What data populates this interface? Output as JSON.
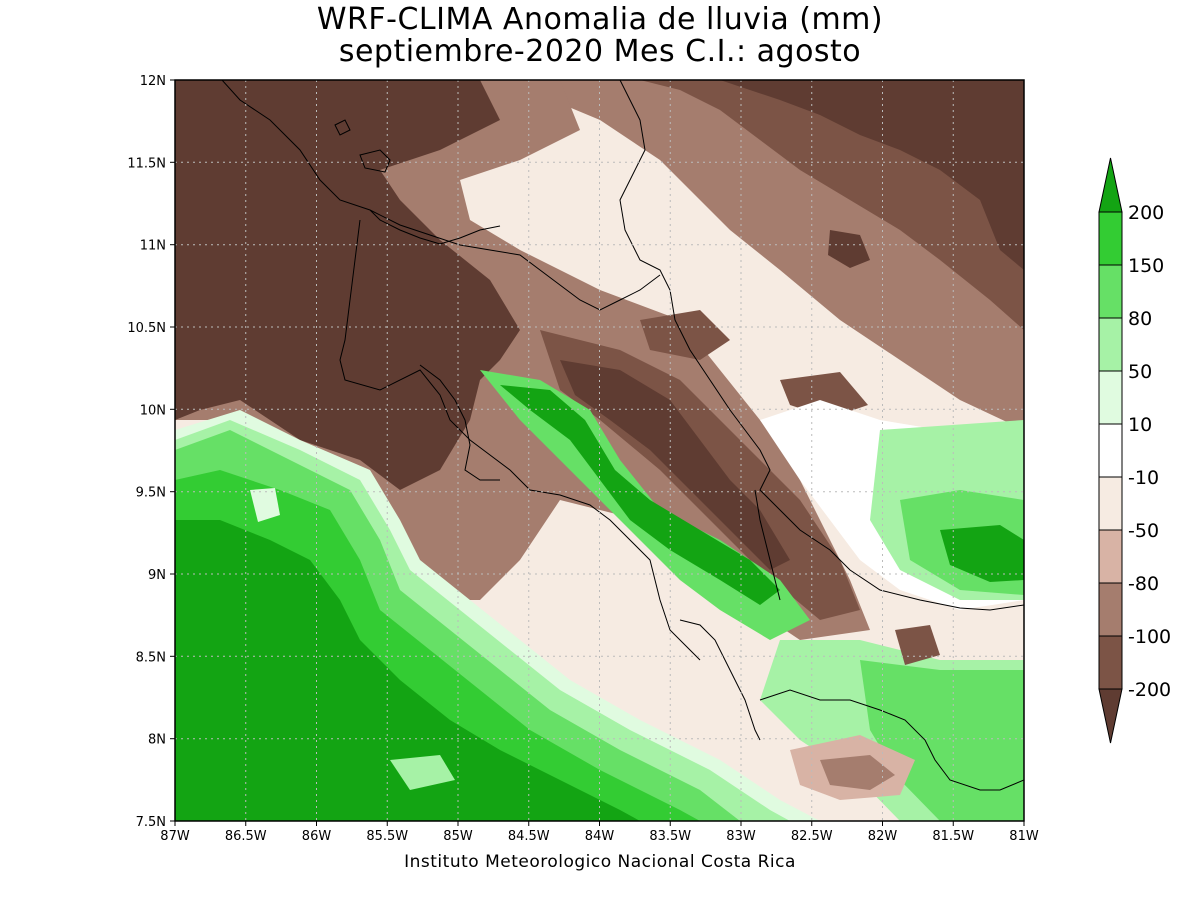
{
  "title": {
    "line1": "WRF-CLIMA Anomalia de lluvia (mm)",
    "line2": "septiembre-2020 Mes C.I.: agosto"
  },
  "credit": "Instituto Meteorologico Nacional Costa Rica",
  "axes": {
    "x_ticks": [
      "87W",
      "86.5W",
      "86W",
      "85.5W",
      "85W",
      "84.5W",
      "84W",
      "83.5W",
      "83W",
      "82.5W",
      "82W",
      "81.5W",
      "81W"
    ],
    "y_ticks": [
      "12N",
      "11.5N",
      "11N",
      "10.5N",
      "10N",
      "9.5N",
      "9N",
      "8.5N",
      "8N",
      "7.5N"
    ],
    "lon_range": [
      -87,
      -81
    ],
    "lat_range": [
      7.5,
      12
    ],
    "grid": "dotted"
  },
  "legend": {
    "labels": [
      "200",
      "150",
      "80",
      "50",
      "10",
      "-10",
      "-50",
      "-80",
      "-100",
      "-200"
    ],
    "colors": [
      "#13a413",
      "#33cc33",
      "#66e066",
      "#a6f2a6",
      "#e0fbe0",
      "#ffffff",
      "#f6ebe2",
      "#d8b3a5",
      "#a57d6e",
      "#7c5446",
      "#5f3c32"
    ]
  },
  "colors": {
    "dry_dark": "#5f3c32",
    "dry_mid": "#7c5446",
    "dry_light": "#a57d6e",
    "dry_pale": "#d8b3a5",
    "cream": "#f6ebe2",
    "neutral": "#ffffff",
    "wet_pale": "#e0fbe0",
    "wet_light": "#a6f2a6",
    "wet_mid": "#66e066",
    "wet": "#33cc33",
    "wet_dark": "#13a413"
  }
}
